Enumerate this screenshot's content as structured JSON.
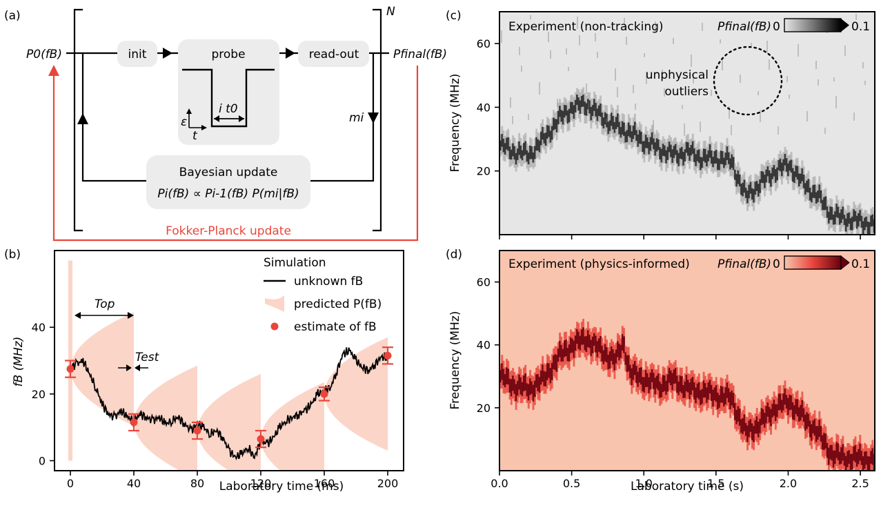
{
  "colors": {
    "fp_red": "#e8463c",
    "band_fill": "#fbd5c8",
    "box_fill": "#ececec",
    "heat_bg_grey": "#e6e6e6",
    "heat_bg_red": "#f9c4ae",
    "error_red": "#e8463c",
    "ink": "#000000"
  },
  "panel_a": {
    "tag": "(a)",
    "p0": "P0(fB)",
    "pfinal": "Pfinal(fB)",
    "init": "init",
    "probe": "probe",
    "readout": "read-out",
    "repeat": "N",
    "mi": "mi",
    "eps": "ε",
    "t": "t",
    "it0": "i t0",
    "bayes_title": "Bayesian update",
    "bayes_eq": "Pi(fB) ∝ Pi-1(fB) P(mi|fB)",
    "fp_update": "Fokker-Planck update"
  },
  "panel_c": {
    "tag": "(c)",
    "title": "Experiment (non-tracking)",
    "cb_label": "Pfinal(fB)",
    "cb_min": "0",
    "cb_max": "0.1",
    "annotation": [
      "unphysical",
      "outliers"
    ]
  },
  "panel_d": {
    "tag": "(d)",
    "title": "Experiment (physics-informed)",
    "cb_label": "Pfinal(fB)",
    "cb_min": "0",
    "cb_max": "0.1"
  },
  "chart_data": [
    {
      "id": "b",
      "type": "line",
      "tag": "(b)",
      "xlabel": "Laboratory time (ms)",
      "ylabel": "fB (MHz)",
      "xlim": [
        -10,
        210
      ],
      "ylim": [
        -3,
        63
      ],
      "xticks": [
        0,
        40,
        80,
        120,
        160,
        200
      ],
      "yticks": [
        0,
        20,
        40
      ],
      "legend_title": "Simulation",
      "legend": [
        "unknown fB",
        "predicted P(fB)",
        "estimate of fB"
      ],
      "legend_position": "top-right",
      "annotations": {
        "T_op": "Top",
        "T_est": "Test"
      },
      "t_op_span_ms": [
        4,
        40
      ],
      "t_est_at_ms": 40,
      "series": [
        {
          "name": "unknown fB",
          "t_ms": [
            0,
            4,
            8,
            12,
            16,
            20,
            24,
            28,
            32,
            36,
            40,
            44,
            48,
            52,
            56,
            60,
            64,
            68,
            72,
            76,
            80,
            84,
            88,
            92,
            96,
            100,
            104,
            108,
            112,
            116,
            120,
            124,
            128,
            132,
            136,
            140,
            144,
            148,
            152,
            156,
            160,
            164,
            168,
            172,
            176,
            180,
            184,
            188,
            192,
            196,
            200
          ],
          "fB_MHz": [
            28,
            29,
            30,
            26,
            22,
            17,
            14,
            13,
            15,
            13,
            12,
            14,
            13,
            12,
            13,
            11,
            12,
            13,
            11,
            9,
            11,
            10,
            8,
            9,
            7,
            3,
            1,
            2,
            4,
            1,
            6,
            5,
            7,
            10,
            12,
            13,
            14,
            15,
            17,
            20,
            21,
            22,
            27,
            32,
            33,
            30,
            28,
            27,
            29,
            31,
            31
          ]
        },
        {
          "name": "estimate of fB",
          "t_ms": [
            0,
            40,
            80,
            120,
            160,
            200
          ],
          "fB_MHz": [
            27.5,
            11.5,
            9.0,
            6.5,
            20.0,
            31.5
          ],
          "err_MHz": [
            2.5,
            2.5,
            2.5,
            2.5,
            2.0,
            2.5
          ]
        }
      ],
      "predicted_bands": [
        {
          "t_start_ms": 0,
          "t_end_ms": 40,
          "center_MHz": 27.5,
          "half_width_end_MHz": 17
        },
        {
          "t_start_ms": 40,
          "t_end_ms": 80,
          "center_MHz": 11.5,
          "half_width_end_MHz": 17
        },
        {
          "t_start_ms": 80,
          "t_end_ms": 120,
          "center_MHz": 9,
          "half_width_end_MHz": 17
        },
        {
          "t_start_ms": 120,
          "t_end_ms": 160,
          "center_MHz": 6.5,
          "half_width_end_MHz": 17
        },
        {
          "t_start_ms": 160,
          "t_end_ms": 200,
          "center_MHz": 20,
          "half_width_end_MHz": 17
        }
      ],
      "initial_prior_strip": {
        "t_ms": 0,
        "fB_range_MHz": [
          0,
          60
        ]
      }
    },
    {
      "id": "c",
      "type": "heatmap",
      "xlabel": "",
      "ylabel": "Frequency (MHz)",
      "xlim": [
        0,
        2.6
      ],
      "ylim": [
        0,
        70
      ],
      "xticks": [
        0.0,
        0.5,
        1.0,
        1.5,
        2.0,
        2.5
      ],
      "yticks": [
        20,
        40,
        60
      ],
      "colormap": "greys",
      "value_range": [
        0,
        0.1
      ],
      "ridge_t_s": [
        0,
        0.1,
        0.2,
        0.3,
        0.4,
        0.5,
        0.6,
        0.7,
        0.8,
        0.9,
        1.0,
        1.1,
        1.2,
        1.3,
        1.4,
        1.5,
        1.6,
        1.7,
        1.8,
        1.9,
        2.0,
        2.1,
        2.2,
        2.3,
        2.4,
        2.5,
        2.6
      ],
      "ridge_f_MHz": [
        28,
        26,
        25,
        30,
        36,
        40,
        41,
        37,
        34,
        32,
        29,
        27,
        25,
        26,
        24,
        24,
        23,
        12,
        16,
        20,
        22,
        16,
        12,
        6,
        5,
        4,
        3
      ],
      "outlier_region": {
        "t_s": 1.7,
        "f_MHz": 48
      }
    },
    {
      "id": "d",
      "type": "heatmap",
      "xlabel": "Laboratory time (s)",
      "ylabel": "Frequency (MHz)",
      "xlim": [
        0,
        2.6
      ],
      "ylim": [
        0,
        70
      ],
      "xticks": [
        0.0,
        0.5,
        1.0,
        1.5,
        2.0,
        2.5
      ],
      "xticklabels": [
        "0.0",
        "0.5",
        "1.0",
        "1.5",
        "2.0",
        "2.5"
      ],
      "yticks": [
        20,
        40,
        60
      ],
      "colormap": "reds",
      "value_range": [
        0,
        0.1
      ],
      "ridge_t_s": [
        0,
        0.1,
        0.2,
        0.3,
        0.4,
        0.5,
        0.6,
        0.7,
        0.8,
        0.85,
        0.9,
        1.0,
        1.1,
        1.2,
        1.3,
        1.4,
        1.5,
        1.6,
        1.7,
        1.8,
        1.9,
        2.0,
        2.1,
        2.2,
        2.3,
        2.4,
        2.5,
        2.6
      ],
      "ridge_f_MHz": [
        30,
        27,
        26,
        29,
        36,
        40,
        42,
        38,
        35,
        41,
        31,
        29,
        27,
        29,
        26,
        25,
        24,
        23,
        12,
        15,
        20,
        22,
        17,
        12,
        5,
        4,
        4,
        3
      ]
    }
  ]
}
